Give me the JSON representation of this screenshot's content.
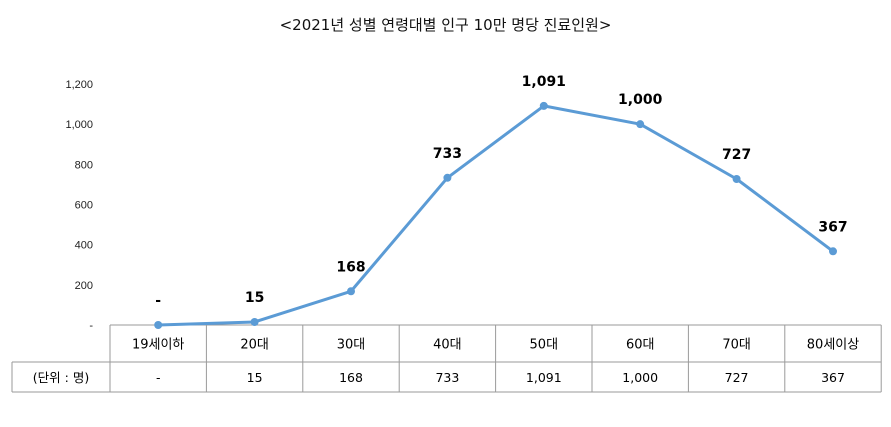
{
  "chart_data": {
    "type": "line",
    "title": "<2021년 성별 연령대별 인구 10만 명당 진료인원>",
    "categories": [
      "19세이하",
      "20대",
      "30대",
      "40대",
      "50대",
      "60대",
      "70대",
      "80세이상"
    ],
    "series": [
      {
        "values": [
          0,
          15,
          168,
          733,
          1091,
          1000,
          727,
          367
        ]
      }
    ],
    "data_labels": [
      "-",
      "15",
      "168",
      "733",
      "1,091",
      "1,000",
      "727",
      "367"
    ],
    "yticks": [
      "-",
      "200",
      "400",
      "600",
      "800",
      "1,000",
      "1,200"
    ],
    "ylim": [
      0,
      1200
    ],
    "grid": false,
    "line_color": "#5b9bd5",
    "table": {
      "row_label": "(단위 : 명)",
      "values": [
        "-",
        "15",
        "168",
        "733",
        "1,091",
        "1,000",
        "727",
        "367"
      ]
    }
  }
}
